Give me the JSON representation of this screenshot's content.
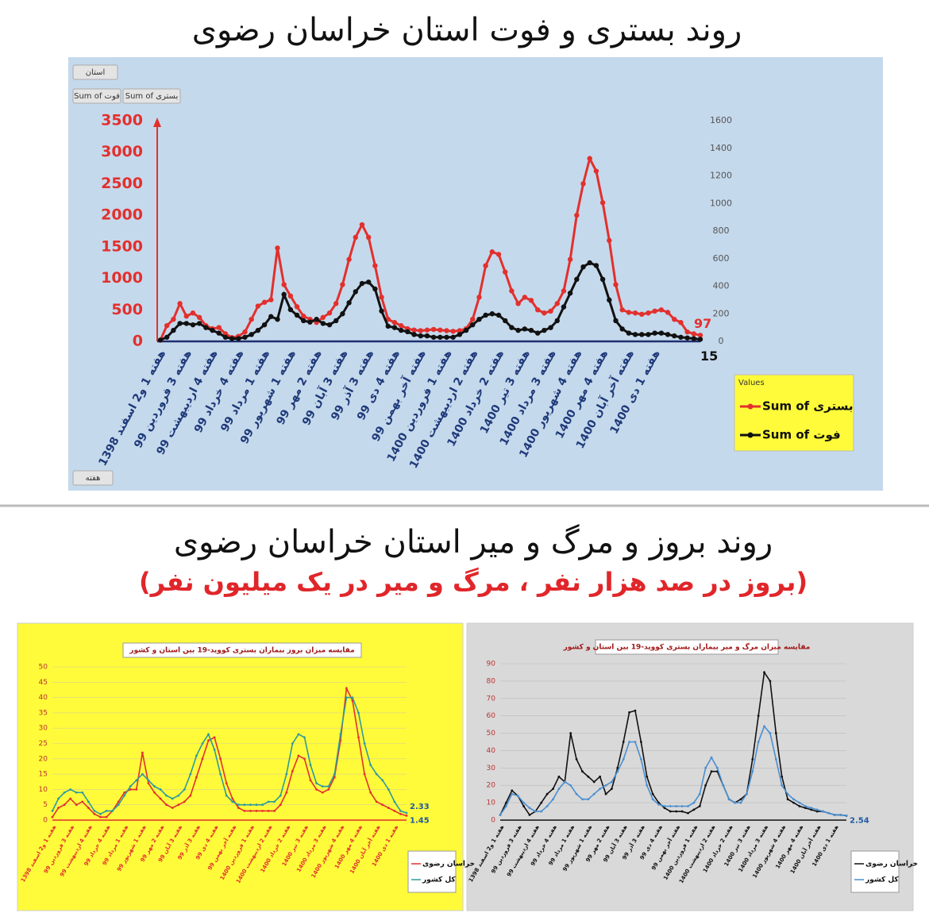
{
  "sections": [
    {
      "title": "روند بستری و فوت استان خراسان رضوی"
    },
    {
      "title": "روند بروز و مرگ و میر استان خراسان رضوی",
      "subtitle": "(بروز در صد هزار نفر ، مرگ و میر در یک میلیون نفر)"
    }
  ],
  "chart_data": [
    {
      "type": "line",
      "field_buttons": [
        "استان",
        "Sum of فوت",
        "Sum of بستری",
        "هفته"
      ],
      "legend_title": "Values",
      "categories": [
        "هفته 1 و2 اسفند 1398",
        null,
        null,
        null,
        "هفته 3 فروردین 99",
        null,
        null,
        null,
        "هفته 4 اردیبهشت 99",
        null,
        null,
        null,
        "هفته 4 خرداد 99",
        null,
        null,
        null,
        "هفته 1 مرداد 99",
        null,
        null,
        null,
        "هفته 1 شهریور 99",
        null,
        null,
        null,
        "هفته 2 مهر 99",
        null,
        null,
        null,
        "هفته 3 آبان 99",
        null,
        null,
        null,
        "هفته 3 آذر 99",
        null,
        null,
        null,
        "هفته 4 دی 99",
        null,
        null,
        null,
        "هفته آخر بهمن 99",
        null,
        null,
        null,
        "هفته 1 فروردین 1400",
        null,
        null,
        null,
        "هفته 2 اردیبهشت 1400",
        null,
        null,
        null,
        "هفته 2 خرداد 1400",
        null,
        null,
        null,
        "هفته 3 تیر 1400",
        null,
        null,
        null,
        "هفته 3 مرداد 1400",
        null,
        null,
        null,
        "هفته 4 شهریور 1400",
        null,
        null,
        null,
        "هفته 4 مهر 1400",
        null,
        null,
        null,
        "هفته آخر آبان 1400",
        null,
        null,
        null,
        "هفته 1 دی 1400",
        null,
        null,
        null,
        null,
        null,
        null,
        null
      ],
      "ylim": [
        0,
        3500
      ],
      "yticks": [
        0,
        500,
        1000,
        1500,
        2000,
        2500,
        3000,
        3500
      ],
      "y2lim": [
        0,
        1600
      ],
      "y2ticks": [
        0,
        200,
        400,
        600,
        800,
        1000,
        1200,
        1400,
        1600
      ],
      "grid": false,
      "series": [
        {
          "name": "Sum of بستری",
          "color": "#e2302d",
          "show_last_label": true,
          "values": [
            20,
            250,
            350,
            600,
            400,
            450,
            380,
            250,
            200,
            220,
            120,
            60,
            80,
            150,
            350,
            560,
            620,
            660,
            1480,
            900,
            720,
            550,
            400,
            350,
            300,
            380,
            450,
            600,
            900,
            1300,
            1650,
            1850,
            1650,
            1200,
            700,
            350,
            300,
            250,
            200,
            180,
            170,
            180,
            190,
            180,
            170,
            160,
            170,
            200,
            350,
            700,
            1200,
            1420,
            1380,
            1100,
            800,
            600,
            700,
            650,
            500,
            450,
            480,
            600,
            800,
            1300,
            2000,
            2500,
            2900,
            2700,
            2200,
            1600,
            900,
            500,
            460,
            450,
            430,
            450,
            480,
            500,
            460,
            350,
            300,
            150,
            120,
            97
          ]
        },
        {
          "name": "Sum of فوت",
          "color": "#111111",
          "axis": "y2",
          "show_last_label": true,
          "values": [
            10,
            30,
            80,
            130,
            130,
            120,
            130,
            100,
            80,
            60,
            30,
            20,
            20,
            30,
            50,
            80,
            120,
            180,
            160,
            340,
            230,
            190,
            150,
            140,
            160,
            130,
            120,
            150,
            200,
            280,
            360,
            420,
            430,
            380,
            220,
            110,
            100,
            80,
            70,
            50,
            40,
            40,
            30,
            30,
            30,
            30,
            50,
            80,
            120,
            160,
            190,
            200,
            190,
            150,
            100,
            80,
            90,
            80,
            60,
            80,
            100,
            150,
            250,
            350,
            450,
            540,
            570,
            550,
            450,
            300,
            150,
            90,
            60,
            50,
            50,
            50,
            60,
            60,
            50,
            40,
            30,
            25,
            20,
            15
          ]
        }
      ]
    },
    {
      "type": "line",
      "title": "مقایسه میزان بروز بیماران بستری کووید-19 بین استان و کشور",
      "categories": [
        "هفته 1 و2 اسفند 1398",
        null,
        null,
        "هفته 3 فروردین 99",
        null,
        null,
        "هفته 4 اردیبهشت 99",
        null,
        null,
        "هفته 4 خرداد 99",
        null,
        null,
        "هفته 1 مرداد 99",
        null,
        null,
        "هفته 1 شهریور 99",
        null,
        null,
        "هفته 2 مهر 99",
        null,
        null,
        "هفته 3 آبان 99",
        null,
        null,
        "هفته 3 آذر 99",
        null,
        null,
        "هفته 4 دی 99",
        null,
        null,
        "هفته آخر بهمن 99",
        null,
        null,
        "هفته 1 فروردین 1400",
        null,
        null,
        "هفته 2 اردیبهشت 1400",
        null,
        null,
        "هفته 2 خرداد 1400",
        null,
        null,
        "هفته 3 تیر 1400",
        null,
        null,
        "هفته 3 مرداد 1400",
        null,
        null,
        "هفته 4 شهریور 1400",
        null,
        null,
        "هفته 4 مهر 1400",
        null,
        null,
        "هفته آخر آبان 1400",
        null,
        null,
        "هفته 1 دی 1400",
        null,
        null
      ],
      "ylim": [
        0,
        50
      ],
      "yticks": [
        0,
        5,
        10,
        15,
        20,
        25,
        30,
        35,
        40,
        45,
        50
      ],
      "grid": true,
      "series": [
        {
          "name": "خراسان رضوی",
          "color": "#e2302d",
          "show_last_label": true,
          "values": [
            1,
            4,
            5,
            7,
            5,
            6,
            4,
            2,
            1,
            1,
            3,
            6,
            9,
            10,
            10,
            22,
            12,
            9,
            7,
            5,
            4,
            5,
            6,
            8,
            14,
            20,
            26,
            27,
            20,
            12,
            7,
            4,
            3,
            3,
            3,
            3,
            3,
            3,
            5,
            9,
            16,
            21,
            20,
            13,
            10,
            9,
            10,
            14,
            26,
            43,
            39,
            27,
            15,
            9,
            6,
            5,
            4,
            3,
            2,
            1.45
          ]
        },
        {
          "name": "کل کشور",
          "color": "#2f9a9c",
          "show_last_label": true,
          "values": [
            3,
            7,
            9,
            10,
            9,
            9,
            6,
            3,
            2,
            3,
            3,
            5,
            8,
            11,
            13,
            15,
            13,
            11,
            10,
            8,
            7,
            8,
            10,
            15,
            21,
            25,
            28,
            23,
            15,
            8,
            6,
            5,
            5,
            5,
            5,
            5,
            6,
            6,
            8,
            15,
            25,
            28,
            27,
            18,
            12,
            11,
            11,
            15,
            28,
            40,
            40,
            35,
            25,
            18,
            15,
            13,
            10,
            6,
            3,
            2.33
          ]
        }
      ]
    },
    {
      "type": "line",
      "title": "مقایسه میزان مرگ و میر بیماران بستری کووید-19 بین استان و کشور",
      "categories": [
        "هفته 1 و2 اسفند 1398",
        null,
        null,
        "هفته 3 فروردین 99",
        null,
        null,
        "هفته 4 اردیبهشت 99",
        null,
        null,
        "هفته 4 خرداد 99",
        null,
        null,
        "هفته 1 مرداد 99",
        null,
        null,
        "هفته 1 شهریور 99",
        null,
        null,
        "هفته 2 مهر 99",
        null,
        null,
        "هفته 3 آبان 99",
        null,
        null,
        "هفته 3 آذر 99",
        null,
        null,
        "هفته 4 دی 99",
        null,
        null,
        "هفته آخر بهمن 99",
        null,
        null,
        "هفته 1 فروردین 1400",
        null,
        null,
        "هفته 2 اردیبهشت 1400",
        null,
        null,
        "هفته 2 خرداد 1400",
        null,
        null,
        "هفته 3 تیر 1400",
        null,
        null,
        "هفته 3 مرداد 1400",
        null,
        null,
        "هفته 4 شهریور 1400",
        null,
        null,
        "هفته 4 مهر 1400",
        null,
        null,
        "هفته آخر آبان 1400",
        null,
        null,
        "هفته 1 دی 1400",
        null,
        null
      ],
      "ylim": [
        0,
        90
      ],
      "yticks": [
        0,
        10,
        20,
        30,
        40,
        50,
        60,
        70,
        80,
        90
      ],
      "grid": true,
      "series": [
        {
          "name": "خراسان رضوی",
          "color": "#111111",
          "show_last_label": true,
          "values": [
            3,
            10,
            17,
            14,
            8,
            3,
            5,
            10,
            15,
            18,
            25,
            22,
            50,
            35,
            28,
            25,
            22,
            25,
            15,
            18,
            30,
            45,
            62,
            63,
            45,
            25,
            15,
            10,
            7,
            5,
            5,
            5,
            4,
            6,
            8,
            20,
            28,
            28,
            20,
            12,
            10,
            12,
            15,
            35,
            60,
            85,
            80,
            50,
            25,
            12,
            10,
            8,
            7,
            6,
            5,
            5,
            4,
            3,
            3,
            2.54
          ]
        },
        {
          "name": "کل کشور",
          "color": "#4a8fd0",
          "show_last_label": false,
          "values": [
            3,
            8,
            15,
            14,
            10,
            7,
            5,
            5,
            8,
            12,
            18,
            22,
            20,
            15,
            12,
            12,
            15,
            18,
            20,
            22,
            28,
            35,
            45,
            45,
            35,
            20,
            12,
            9,
            8,
            8,
            8,
            8,
            8,
            10,
            15,
            30,
            36,
            30,
            20,
            12,
            10,
            10,
            15,
            28,
            45,
            54,
            50,
            35,
            20,
            15,
            12,
            10,
            8,
            7,
            6,
            5,
            4,
            3,
            3,
            2.6
          ]
        }
      ]
    }
  ]
}
